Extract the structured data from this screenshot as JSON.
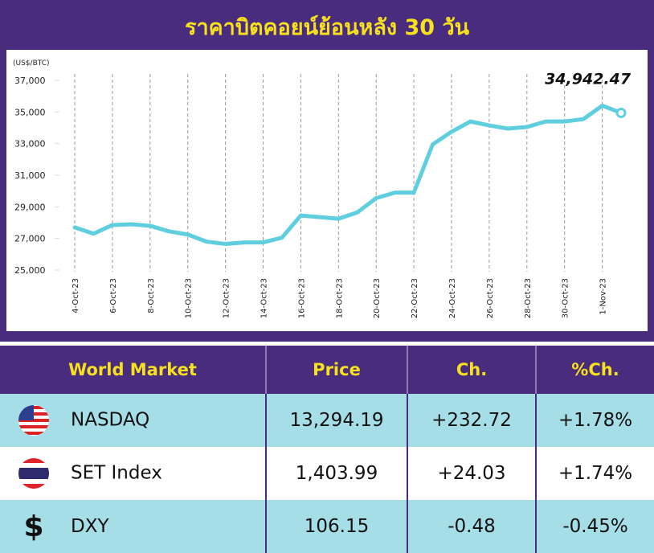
{
  "chart_data": {
    "type": "line",
    "title": "ราคาบิตคอยน์ย้อนหลัง 30 วัน",
    "y_label": "(US$/BTC)",
    "categories": [
      "4-Oct-23",
      null,
      "6-Oct-23",
      null,
      "8-Oct-23",
      null,
      "10-Oct-23",
      null,
      "12-Oct-23",
      null,
      "14-Oct-23",
      null,
      "16-Oct-23",
      null,
      "18-Oct-23",
      null,
      "20-Oct-23",
      null,
      "22-Oct-23",
      null,
      "24-Oct-23",
      null,
      "26-Oct-23",
      null,
      "28-Oct-23",
      null,
      "30-Oct-23",
      null,
      "1-Nov-23",
      null
    ],
    "series": [
      {
        "name": "BTC",
        "color": "#5fcfdf",
        "values": [
          27700,
          27300,
          27850,
          27900,
          27800,
          27450,
          27250,
          26800,
          26650,
          26750,
          26750,
          27050,
          28450,
          28350,
          28250,
          28650,
          29550,
          29900,
          29900,
          32950,
          33750,
          34400,
          34150,
          33950,
          34050,
          34400,
          34400,
          34550,
          35400,
          34942.47
        ],
        "value_labels": [
          null,
          null,
          null,
          null,
          null,
          null,
          null,
          null,
          null,
          null,
          null,
          null,
          null,
          null,
          null,
          null,
          null,
          null,
          null,
          null,
          null,
          null,
          null,
          null,
          null,
          null,
          null,
          null,
          null,
          "34,942.47"
        ]
      }
    ],
    "ylim": [
      25000,
      37000
    ],
    "yticks": [
      {
        "value": 25000,
        "label": "25,000"
      },
      {
        "value": 27000,
        "label": "27,000"
      },
      {
        "value": 29000,
        "label": "29,000"
      },
      {
        "value": 31000,
        "label": "31,000"
      },
      {
        "value": 33000,
        "label": "33,000"
      },
      {
        "value": 35000,
        "label": "35,000"
      },
      {
        "value": 37000,
        "label": "37,000"
      }
    ],
    "grid": true
  },
  "table": {
    "header": [
      "World Market",
      "Price",
      "Ch.",
      "%Ch."
    ],
    "rows": [
      [
        "NASDAQ",
        "13,294.19",
        "+232.72",
        "+1.78%"
      ],
      [
        "SET Index",
        "1,403.99",
        "+24.03",
        "+1.74%"
      ],
      [
        "DXY",
        "106.15",
        "-0.48",
        "-0.45%"
      ]
    ],
    "currency_symbol": "$"
  }
}
